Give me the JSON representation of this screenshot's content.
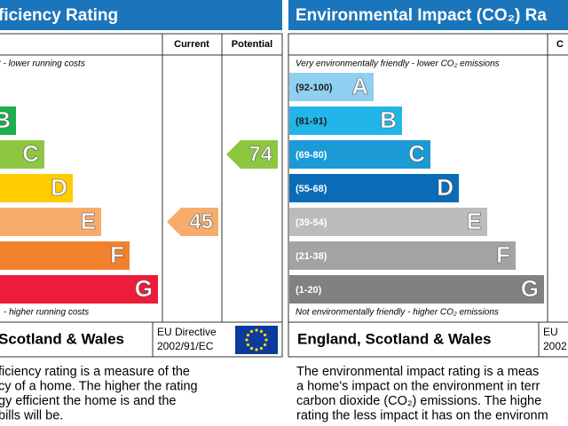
{
  "left_panel": {
    "title": "ficiency Rating",
    "columns": [
      "Current",
      "Potential"
    ],
    "top_note": "t - lower running costs",
    "bands": [
      "B",
      "C",
      "D",
      "E",
      "F",
      "G"
    ],
    "bottom_note": "- higher running costs",
    "current": {
      "value": 45,
      "band": "E"
    },
    "potential": {
      "value": 74,
      "band": "C"
    },
    "footer": {
      "region": "Scotland & Wales",
      "directive": [
        "EU Directive",
        "2002/91/EC"
      ]
    },
    "description": [
      "ficiency rating is a measure of the",
      "cy of a home. The higher the rating",
      "gy efficient the home is and the",
      "bills will be."
    ]
  },
  "right_panel": {
    "title": "Environmental Impact (CO₂) Ra",
    "columns": [
      "C"
    ],
    "top_note": "Very environmentally friendly - lower CO₂ emissions",
    "bands": [
      {
        "range": "(92-100)",
        "letter": "A"
      },
      {
        "range": "(81-91)",
        "letter": "B"
      },
      {
        "range": "(69-80)",
        "letter": "C"
      },
      {
        "range": "(55-68)",
        "letter": "D"
      },
      {
        "range": "(39-54)",
        "letter": "E"
      },
      {
        "range": "(21-38)",
        "letter": "F"
      },
      {
        "range": "(1-20)",
        "letter": "G"
      }
    ],
    "bottom_note": "Not environmentally friendly - higher CO₂ emissions",
    "footer": {
      "region": "England, Scotland & Wales",
      "directive": [
        "EU",
        "2002"
      ]
    },
    "description": [
      "The environmental impact rating is a meas",
      "a home's impact on the environment in terr",
      "carbon dioxide (CO₂) emissions. The highe",
      "rating the less impact it has on the environm"
    ]
  }
}
